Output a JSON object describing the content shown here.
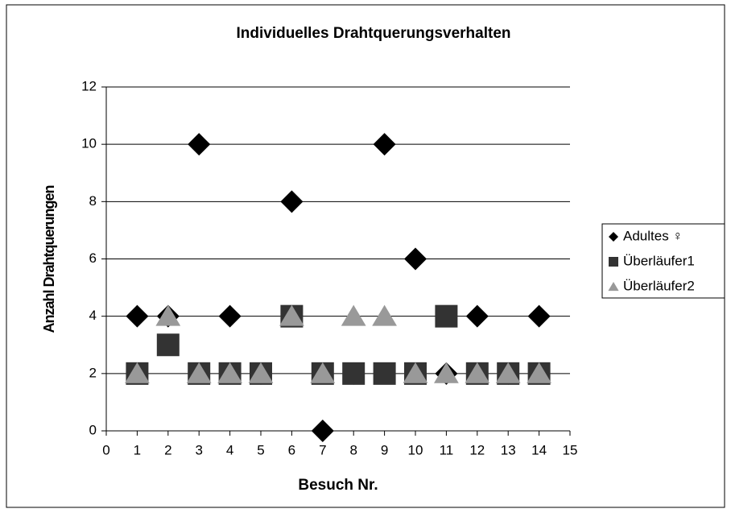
{
  "chart_data": {
    "type": "scatter",
    "title": "Individuelles Drahtquerungsverhalten",
    "x_label": "Besuch Nr.",
    "y_label": "Anzahl Drahtquerungen",
    "x": [
      1,
      2,
      3,
      4,
      5,
      6,
      7,
      8,
      9,
      10,
      11,
      12,
      13,
      14
    ],
    "series": [
      {
        "name": "Adultes ♀",
        "color": "#000000",
        "marker": "diamond",
        "values": [
          4,
          4,
          10,
          4,
          2,
          8,
          0,
          2,
          10,
          6,
          2,
          4,
          2,
          4
        ]
      },
      {
        "name": "Überläufer1",
        "color": "#333333",
        "marker": "square",
        "values": [
          2,
          3,
          2,
          2,
          2,
          4,
          2,
          2,
          2,
          2,
          4,
          2,
          2,
          2
        ]
      },
      {
        "name": "Überläufer2",
        "color": "#999999",
        "marker": "triangle",
        "values": [
          2,
          4,
          2,
          2,
          2,
          4,
          2,
          4,
          4,
          2,
          2,
          2,
          2,
          2
        ]
      }
    ],
    "xlim": [
      0,
      15
    ],
    "xticks": [
      0,
      1,
      2,
      3,
      4,
      5,
      6,
      7,
      8,
      9,
      10,
      11,
      12,
      13,
      14,
      15
    ],
    "ylim": [
      0,
      12
    ],
    "yticks": [
      0,
      2,
      4,
      6,
      8,
      10,
      12
    ],
    "grid": true,
    "legend": "right"
  }
}
